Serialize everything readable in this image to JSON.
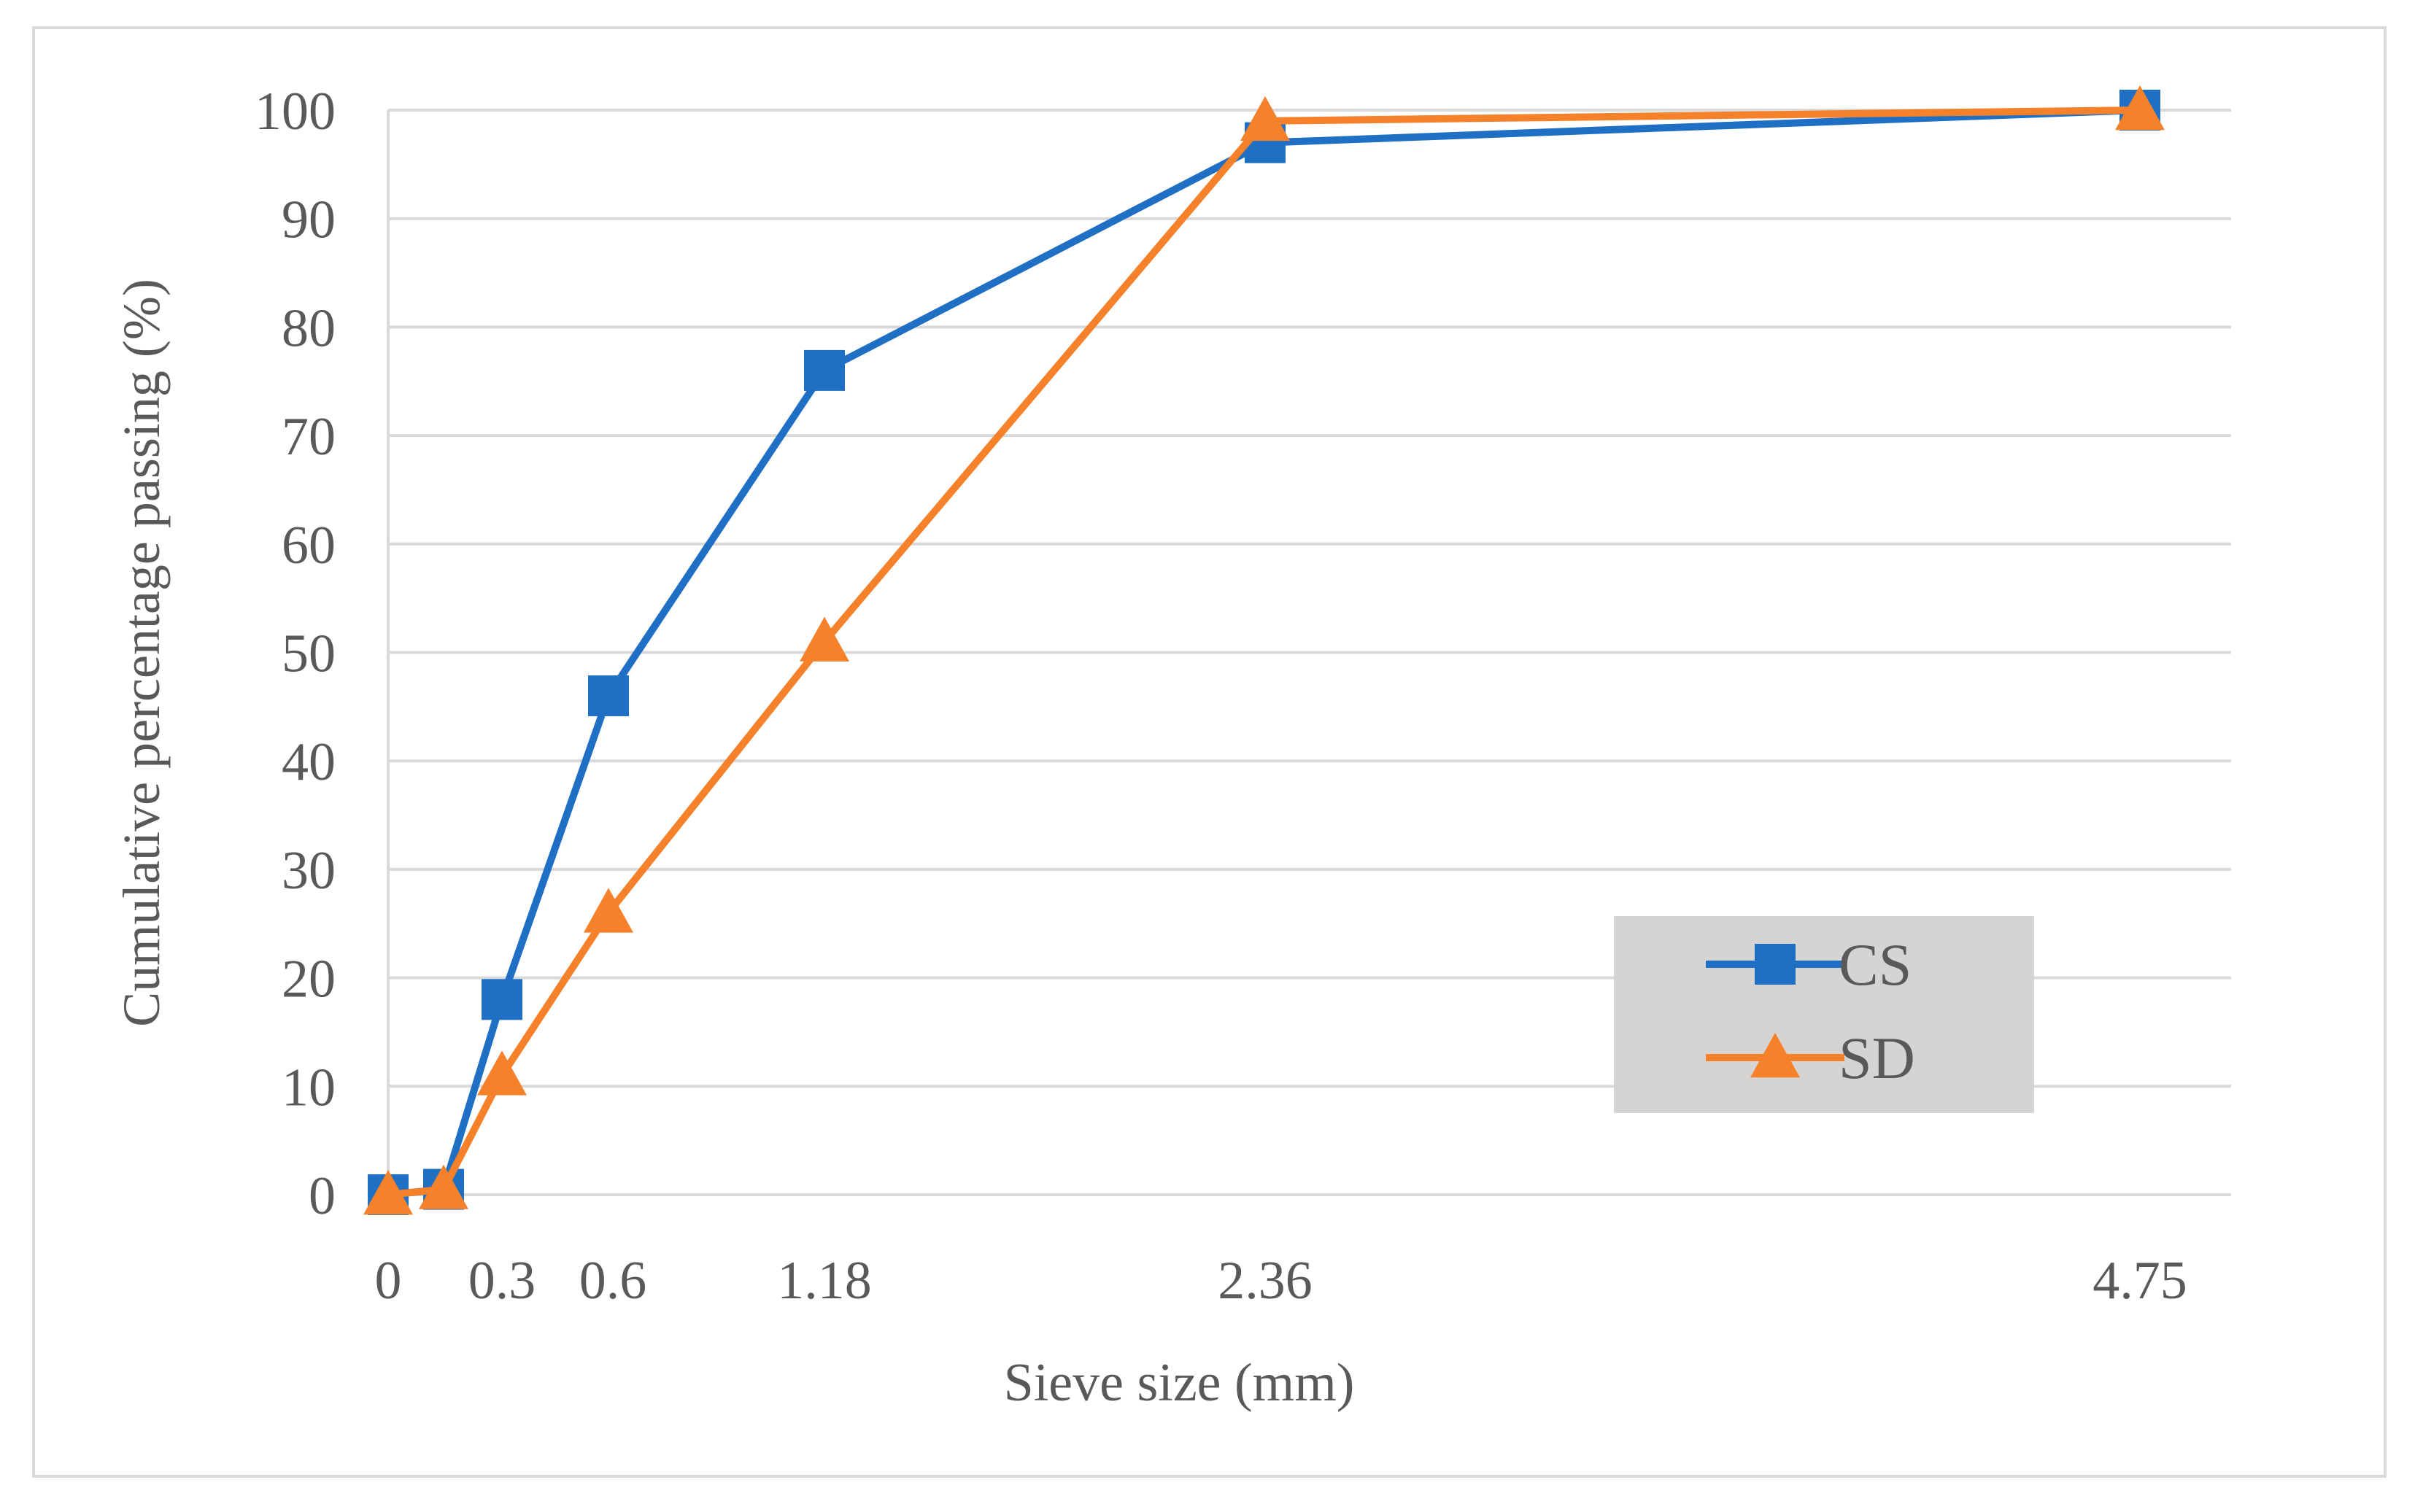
{
  "chart_data": {
    "type": "line",
    "title": "",
    "xlabel": "Sieve size (mm)",
    "ylabel": "Cumulative percentage passing (%)",
    "ylim": [
      0,
      100
    ],
    "yticks": [
      "0",
      "10",
      "20",
      "30",
      "40",
      "50",
      "60",
      "70",
      "80",
      "90",
      "100"
    ],
    "xticks": [
      "0",
      "0.3",
      "0.6",
      "1.18",
      "2.36",
      "4.75"
    ],
    "x": [
      0,
      0.15,
      0.3,
      0.6,
      1.18,
      2.36,
      4.75
    ],
    "grid": true,
    "legend_position": "bottom-right",
    "series": [
      {
        "name": "CS",
        "color": "#1f6fc5",
        "marker": "square",
        "values": [
          0,
          0.5,
          18,
          46,
          76,
          97,
          100
        ]
      },
      {
        "name": "SD",
        "color": "#f5822a",
        "marker": "triangle",
        "values": [
          0,
          0.5,
          11,
          26,
          51,
          99,
          100
        ]
      }
    ],
    "gridline_color": "#d9d9d9",
    "legend_background": "#d6d3d3"
  }
}
